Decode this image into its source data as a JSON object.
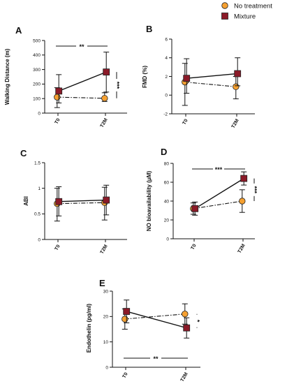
{
  "legend": [
    {
      "label": "No treatment",
      "color": "#f5a031",
      "marker": "circle",
      "line": "dash-dot"
    },
    {
      "label": "Mixture",
      "color": "#8b1a28",
      "marker": "square",
      "line": "solid"
    }
  ],
  "chart_data": [
    {
      "type": "line",
      "panel": "A",
      "categories": [
        "T0",
        "T2M"
      ],
      "ylabel": "Walking Distance (m)",
      "ylim": [
        0,
        500
      ],
      "yticks": [
        0,
        100,
        200,
        300,
        400,
        500
      ],
      "series": [
        {
          "name": "No treatment",
          "values": [
            110,
            102
          ],
          "err_low": [
            38,
            80
          ],
          "err_high": [
            175,
            140
          ]
        },
        {
          "name": "Mixture",
          "values": [
            152,
            283
          ],
          "err_low": [
            70,
            145
          ],
          "err_high": [
            265,
            420
          ]
        }
      ],
      "significance": [
        {
          "label": "**",
          "type": "horizontal",
          "position": "above"
        },
        {
          "label": "***",
          "type": "vertical",
          "position": "T2M"
        }
      ]
    },
    {
      "type": "line",
      "panel": "B",
      "categories": [
        "T0",
        "T2M"
      ],
      "ylabel": "FMD (%)",
      "ylim": [
        -2,
        6
      ],
      "yticks": [
        -2,
        0,
        2,
        4,
        6
      ],
      "series": [
        {
          "name": "No treatment",
          "values": [
            1.4,
            0.9
          ],
          "err_low": [
            -1.1,
            -0.4
          ],
          "err_high": [
            3.4,
            2.0
          ]
        },
        {
          "name": "Mixture",
          "values": [
            1.8,
            2.3
          ],
          "err_low": [
            0.2,
            1.0
          ],
          "err_high": [
            3.9,
            4.0
          ]
        }
      ],
      "significance": []
    },
    {
      "type": "line",
      "panel": "C",
      "categories": [
        "T0",
        "T2M"
      ],
      "ylabel": "ABI",
      "ylim": [
        0,
        1.5
      ],
      "yticks": [
        0.0,
        0.5,
        1.0,
        1.5
      ],
      "series": [
        {
          "name": "No treatment",
          "values": [
            0.7,
            0.72
          ],
          "err_low": [
            0.36,
            0.38
          ],
          "err_high": [
            1.0,
            1.02
          ]
        },
        {
          "name": "Mixture",
          "values": [
            0.74,
            0.77
          ],
          "err_low": [
            0.46,
            0.48
          ],
          "err_high": [
            1.03,
            1.06
          ]
        }
      ],
      "significance": []
    },
    {
      "type": "line",
      "panel": "D",
      "categories": [
        "T0",
        "T2M"
      ],
      "ylabel": "NO bioavailability  (μM)",
      "ylim": [
        0,
        80
      ],
      "yticks": [
        0,
        20,
        40,
        60,
        80
      ],
      "series": [
        {
          "name": "No treatment",
          "values": [
            32,
            40
          ],
          "err_low": [
            26,
            28
          ],
          "err_high": [
            38,
            52
          ]
        },
        {
          "name": "Mixture",
          "values": [
            32,
            64
          ],
          "err_low": [
            25,
            57
          ],
          "err_high": [
            39,
            71
          ]
        }
      ],
      "significance": [
        {
          "label": "***",
          "type": "horizontal",
          "position": "above"
        },
        {
          "label": "***",
          "type": "vertical",
          "position": "T2M"
        }
      ]
    },
    {
      "type": "line",
      "panel": "E",
      "categories": [
        "T0",
        "T2M"
      ],
      "ylabel": "Endothelin (pg/ml)",
      "ylim": [
        0,
        30
      ],
      "yticks": [
        0,
        10,
        20,
        30
      ],
      "series": [
        {
          "name": "No treatment",
          "values": [
            19,
            21
          ],
          "err_low": [
            15,
            17
          ],
          "err_high": [
            23,
            25
          ]
        },
        {
          "name": "Mixture",
          "values": [
            22,
            15.5
          ],
          "err_low": [
            17.5,
            11.5
          ],
          "err_high": [
            26.5,
            19.5
          ]
        }
      ],
      "significance": [
        {
          "label": "**",
          "type": "horizontal",
          "position": "below"
        },
        {
          "label": "*",
          "type": "vertical",
          "position": "T2M"
        }
      ]
    }
  ]
}
